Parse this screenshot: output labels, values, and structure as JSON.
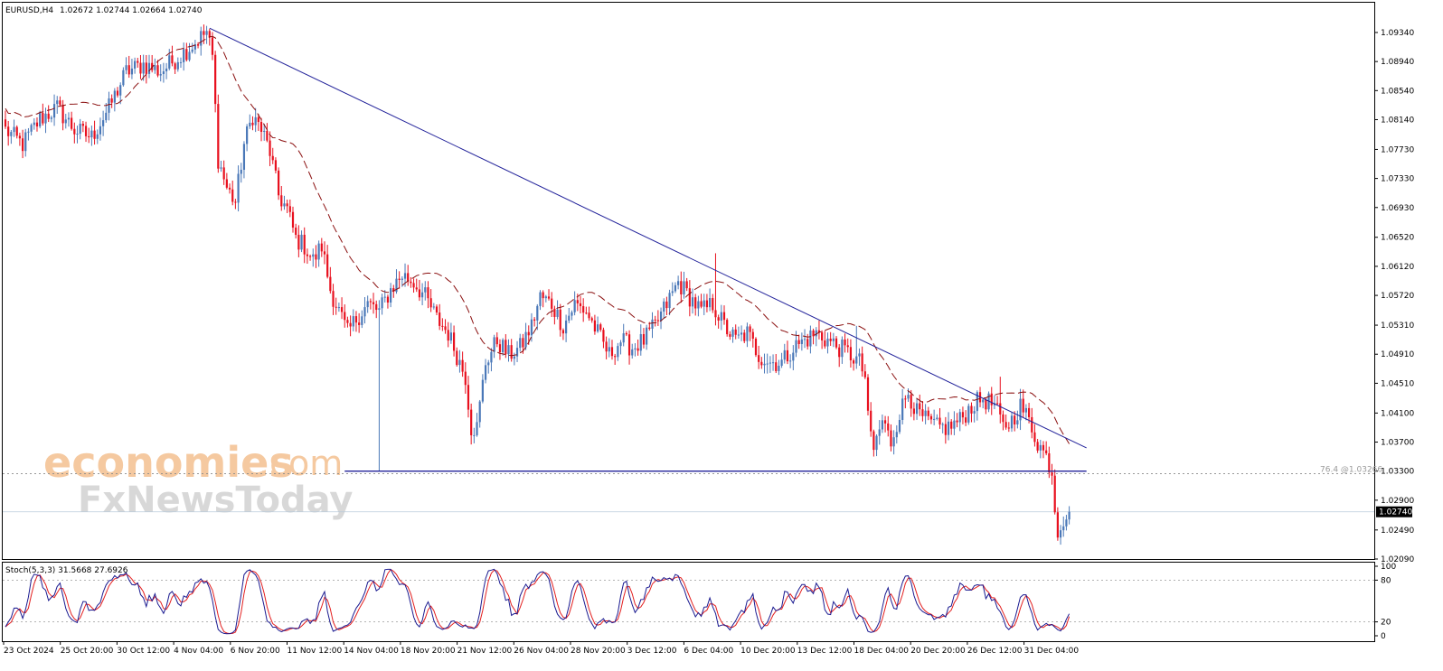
{
  "header": {
    "symbol": "EURUSD,H4",
    "ohlc": "1.02672 1.02744 1.02664 1.02740"
  },
  "stoch_header": {
    "label": "Stoch(5,3,3) 31.5668 27.6926"
  },
  "watermark": {
    "brand_main": "economies",
    "brand_suffix": ".com",
    "brand_second": "FxNewsToday"
  },
  "colors": {
    "bull": "#4a78b8",
    "bear": "#e8101e",
    "ma": "#8b1010",
    "trendline": "#22229a",
    "support": "#22229a",
    "stoch_main": "#1a1a90",
    "stoch_signal": "#e31f1f"
  },
  "chart_data": {
    "type": "candlestick",
    "symbol": "EURUSD",
    "timeframe": "H4",
    "ylim": [
      1.0209,
      1.0975
    ],
    "y_ticks": [
      "1.09340",
      "1.08940",
      "1.08540",
      "1.08140",
      "1.07730",
      "1.07330",
      "1.06930",
      "1.06520",
      "1.06120",
      "1.05720",
      "1.05310",
      "1.04910",
      "1.04510",
      "1.04100",
      "1.03700",
      "1.03300",
      "1.02900",
      "1.02490",
      "1.02090"
    ],
    "x_ticks": [
      "23 Oct 2024",
      "25 Oct 20:00",
      "30 Oct 12:00",
      "4 Nov 04:00",
      "6 Nov 20:00",
      "11 Nov 12:00",
      "14 Nov 04:00",
      "18 Nov 20:00",
      "21 Nov 12:00",
      "26 Nov 04:00",
      "28 Nov 20:00",
      "3 Dec 12:00",
      "6 Dec 04:00",
      "10 Dec 20:00",
      "13 Dec 12:00",
      "18 Dec 04:00",
      "20 Dec 20:00",
      "26 Dec 12:00",
      "31 Dec 04:00"
    ],
    "current_price": "1.02740",
    "fib_label": "76.4 @1.03266",
    "fib_level": 1.03266,
    "price_anchors": [
      [
        0,
        1.08
      ],
      [
        6,
        1.078
      ],
      [
        12,
        1.0815
      ],
      [
        18,
        1.083
      ],
      [
        24,
        1.08
      ],
      [
        30,
        1.079
      ],
      [
        36,
        1.083
      ],
      [
        42,
        1.088
      ],
      [
        48,
        1.089
      ],
      [
        54,
        1.088
      ],
      [
        60,
        1.09
      ],
      [
        66,
        1.092
      ],
      [
        70,
        1.0935
      ],
      [
        72,
        1.09
      ],
      [
        74,
        1.076
      ],
      [
        77,
        1.072
      ],
      [
        80,
        1.07
      ],
      [
        83,
        1.078
      ],
      [
        86,
        1.082
      ],
      [
        89,
        1.08
      ],
      [
        92,
        1.077
      ],
      [
        95,
        1.071
      ],
      [
        98,
        1.069
      ],
      [
        101,
        1.065
      ],
      [
        104,
        1.064
      ],
      [
        107,
        1.062
      ],
      [
        110,
        1.064
      ],
      [
        113,
        1.058
      ],
      [
        116,
        1.055
      ],
      [
        119,
        1.052
      ],
      [
        122,
        1.054
      ],
      [
        126,
        1.056
      ],
      [
        130,
        1.055
      ],
      [
        134,
        1.058
      ],
      [
        138,
        1.06
      ],
      [
        142,
        1.059
      ],
      [
        146,
        1.057
      ],
      [
        150,
        1.054
      ],
      [
        154,
        1.052
      ],
      [
        157,
        1.049
      ],
      [
        160,
        1.046
      ],
      [
        162,
        1.039
      ],
      [
        164,
        1.039
      ],
      [
        167,
        1.048
      ],
      [
        171,
        1.051
      ],
      [
        175,
        1.049
      ],
      [
        179,
        1.05
      ],
      [
        183,
        1.053
      ],
      [
        186,
        1.057
      ],
      [
        190,
        1.056
      ],
      [
        194,
        1.053
      ],
      [
        198,
        1.056
      ],
      [
        202,
        1.055
      ],
      [
        206,
        1.052
      ],
      [
        210,
        1.049
      ],
      [
        214,
        1.051
      ],
      [
        218,
        1.05
      ],
      [
        222,
        1.051
      ],
      [
        226,
        1.053
      ],
      [
        230,
        1.056
      ],
      [
        234,
        1.059
      ],
      [
        238,
        1.057
      ],
      [
        242,
        1.055
      ],
      [
        246,
        1.056
      ],
      [
        250,
        1.053
      ],
      [
        254,
        1.051
      ],
      [
        258,
        1.052
      ],
      [
        262,
        1.049
      ],
      [
        266,
        1.048
      ],
      [
        270,
        1.048
      ],
      [
        274,
        1.05
      ],
      [
        278,
        1.051
      ],
      [
        282,
        1.052
      ],
      [
        286,
        1.051
      ],
      [
        290,
        1.05
      ],
      [
        294,
        1.049
      ],
      [
        297,
        1.048
      ],
      [
        299,
        1.046
      ],
      [
        300,
        1.04
      ],
      [
        302,
        1.036
      ],
      [
        305,
        1.04
      ],
      [
        308,
        1.037
      ],
      [
        311,
        1.041
      ],
      [
        314,
        1.044
      ],
      [
        317,
        1.041
      ],
      [
        320,
        1.04
      ],
      [
        324,
        1.039
      ],
      [
        328,
        1.039
      ],
      [
        332,
        1.04
      ],
      [
        336,
        1.042
      ],
      [
        340,
        1.043
      ],
      [
        344,
        1.042
      ],
      [
        347,
        1.039
      ],
      [
        350,
        1.04
      ],
      [
        353,
        1.042
      ],
      [
        356,
        1.04
      ],
      [
        359,
        1.037
      ],
      [
        362,
        1.035
      ],
      [
        364,
        1.033
      ],
      [
        365,
        1.028
      ],
      [
        366,
        1.025
      ],
      [
        368,
        1.0265
      ],
      [
        370,
        1.0274
      ]
    ],
    "spikes": [
      [
        130,
        1.033
      ],
      [
        366,
        1.024
      ],
      [
        296,
        1.053
      ],
      [
        247,
        1.063
      ],
      [
        346,
        1.046
      ]
    ],
    "ma_period": 20,
    "trendline": {
      "from_index": 71,
      "from_price": 1.094,
      "to_index": 376,
      "to_price": 1.0362
    },
    "support": {
      "from_index": 118,
      "to_index": 376,
      "price": 1.033
    },
    "stoch": {
      "ylim": [
        0,
        100
      ],
      "levels": [
        "100",
        "80",
        "20",
        "0"
      ],
      "k_last": 31.5668,
      "d_last": 27.6926
    }
  }
}
